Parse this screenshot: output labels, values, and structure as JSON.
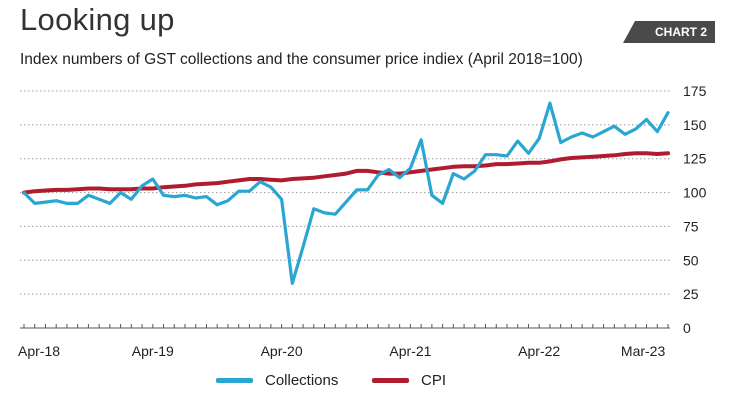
{
  "header": {
    "title": "Looking up",
    "badge": "CHART 2",
    "subtitle": "Index numbers of GST collections and the consumer price indiex (April 2018=100)"
  },
  "colors": {
    "collections": "#2aa6d3",
    "cpi": "#b01c2e",
    "grid": "#9a9a9a",
    "badge_bg": "#4a4a4a"
  },
  "chart_data": {
    "type": "line",
    "x_tick_labels": [
      "Apr-18",
      "Apr-19",
      "Apr-20",
      "Apr-21",
      "Apr-22",
      "Mar-23"
    ],
    "x_tick_months": [
      "2018-04",
      "2019-04",
      "2020-04",
      "2021-04",
      "2022-04",
      "2023-03"
    ],
    "ylim": [
      0,
      175
    ],
    "y_ticks": [
      0,
      25,
      50,
      75,
      100,
      125,
      150,
      175
    ],
    "grid": "dotted horizontal",
    "legend_position": "bottom-center",
    "series": [
      {
        "name": "Collections",
        "values": [
          100,
          92,
          93,
          94,
          92,
          92,
          98,
          95,
          92,
          100,
          95,
          105,
          110,
          98,
          97,
          98,
          96,
          97,
          91,
          94,
          101,
          101,
          108,
          104,
          95,
          33,
          60,
          88,
          85,
          84,
          93,
          102,
          102,
          113,
          117,
          111,
          118,
          139,
          98,
          92,
          114,
          110,
          116,
          128,
          128,
          127,
          138,
          129,
          140,
          166,
          137,
          141,
          144,
          141,
          145,
          149,
          143,
          147,
          154,
          145,
          159
        ]
      },
      {
        "name": "CPI",
        "values": [
          100,
          101,
          101.5,
          102,
          102,
          102.5,
          103,
          103,
          102.5,
          102.5,
          102.5,
          103,
          103,
          104,
          104.5,
          105,
          106,
          106.5,
          107,
          108,
          109,
          110,
          110,
          109.5,
          109,
          110,
          110.5,
          111,
          112,
          113,
          114,
          116,
          116,
          115,
          114,
          114,
          115,
          116,
          117,
          118,
          119,
          119.5,
          119.5,
          120,
          121,
          121,
          121.5,
          122,
          122,
          123,
          124.5,
          125.5,
          126,
          126.5,
          127,
          127.5,
          128.5,
          129,
          129,
          128.5,
          129
        ]
      }
    ]
  }
}
